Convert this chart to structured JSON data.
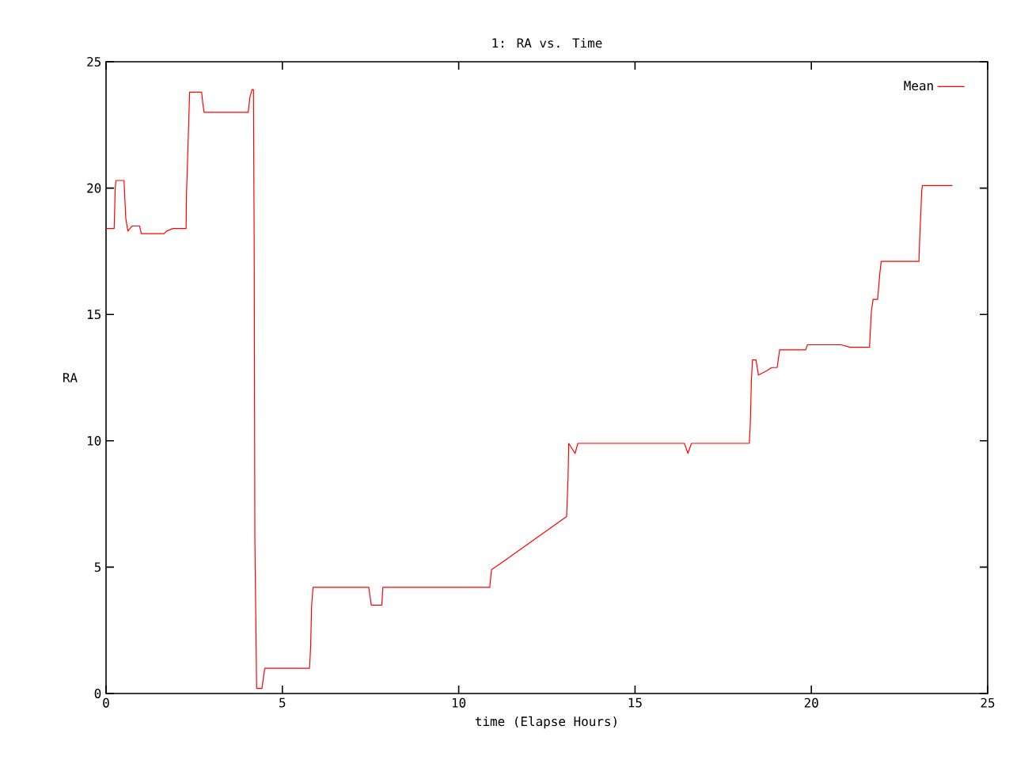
{
  "chart_data": {
    "type": "line",
    "title": "1: RA vs. Time",
    "xlabel": "time (Elapse Hours)",
    "ylabel": "RA",
    "x": [
      0,
      0.23,
      0.26,
      0.28,
      0.51,
      0.56,
      0.62,
      0.74,
      0.95,
      1.0,
      1.65,
      1.72,
      1.9,
      2.27,
      2.28,
      2.34,
      2.37,
      2.71,
      2.74,
      2.78,
      4.03,
      4.08,
      4.14,
      4.18,
      4.2,
      4.22,
      4.27,
      4.42,
      4.5,
      5.77,
      5.8,
      5.83,
      5.87,
      7.45,
      7.52,
      7.82,
      7.85,
      10.88,
      10.93,
      11.14,
      13.06,
      13.1,
      13.12,
      13.3,
      13.38,
      13.6,
      16.4,
      16.5,
      16.6,
      18.24,
      18.27,
      18.3,
      18.33,
      18.43,
      18.5,
      18.77,
      18.87,
      19.03,
      19.1,
      19.84,
      19.89,
      20.33,
      20.84,
      21.1,
      21.65,
      21.7,
      21.75,
      21.88,
      21.94,
      21.98,
      23.05,
      23.07,
      23.13,
      23.15,
      24.0
    ],
    "series": [
      {
        "name": "Mean",
        "color": "#ff0000",
        "values": [
          18.4,
          18.4,
          20.0,
          20.3,
          20.3,
          18.8,
          18.3,
          18.5,
          18.5,
          18.2,
          18.2,
          18.3,
          18.4,
          18.4,
          19.7,
          22.4,
          23.8,
          23.8,
          23.4,
          23.0,
          23.0,
          23.6,
          23.9,
          23.9,
          17.9,
          6.1,
          0.2,
          0.2,
          1.0,
          1.0,
          1.8,
          3.5,
          4.2,
          4.2,
          3.5,
          3.5,
          4.2,
          4.2,
          4.9,
          5.1,
          7.0,
          8.5,
          9.9,
          9.5,
          9.9,
          9.9,
          9.9,
          9.5,
          9.9,
          9.9,
          10.7,
          12.4,
          13.2,
          13.2,
          12.6,
          12.8,
          12.9,
          12.9,
          13.6,
          13.6,
          13.8,
          13.8,
          13.8,
          13.7,
          13.7,
          15.1,
          15.6,
          15.6,
          16.6,
          17.1,
          17.1,
          17.9,
          19.9,
          20.1,
          20.1
        ]
      }
    ],
    "xlim": [
      0,
      25
    ],
    "ylim": [
      0,
      25
    ],
    "xticks": [
      0,
      5,
      10,
      15,
      20,
      25
    ],
    "yticks": [
      0,
      5,
      10,
      15,
      20,
      25
    ],
    "legend": "top right",
    "grid": false,
    "marker": "none",
    "line_style": "solid"
  }
}
